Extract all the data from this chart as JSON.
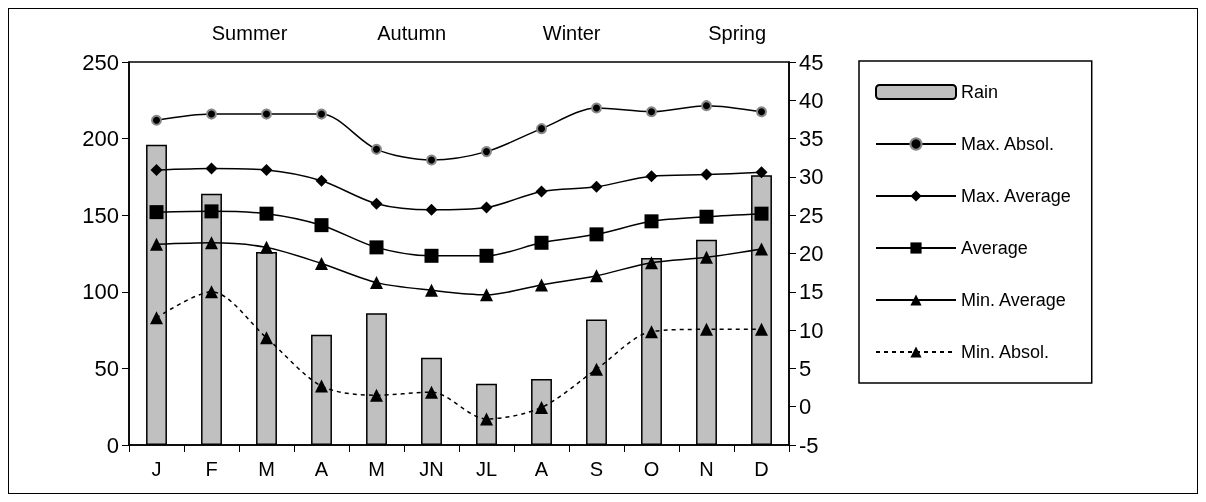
{
  "chart_data": {
    "type": "bar",
    "categories": [
      "J",
      "F",
      "M",
      "A",
      "M",
      "JN",
      "JL",
      "A",
      "S",
      "O",
      "N",
      "D"
    ],
    "annotations": [
      "Summer",
      "Autumn",
      "Winter",
      "Spring"
    ],
    "series": [
      {
        "name": "Rain",
        "color": "#c0c0c0",
        "values": [
          196,
          164,
          126,
          72,
          86,
          57,
          40,
          43,
          82,
          122,
          134,
          176
        ]
      },
      {
        "name": "Max. Absol.",
        "type": "line",
        "axis": "y2",
        "color": "#000000",
        "marker": "circle",
        "line_style": "solid",
        "values": [
          37.4,
          38.2,
          38.2,
          38.2,
          33.6,
          32.2,
          33.3,
          36.3,
          39.0,
          38.5,
          39.3,
          38.5
        ]
      },
      {
        "name": "Max. Average",
        "type": "line",
        "axis": "y2",
        "color": "#000000",
        "marker": "diamond",
        "line_style": "solid",
        "values": [
          30.9,
          31.1,
          30.9,
          29.5,
          26.5,
          25.7,
          26.0,
          28.1,
          28.7,
          30.1,
          30.3,
          30.6
        ]
      },
      {
        "name": "Average",
        "type": "line",
        "axis": "y2",
        "color": "#000000",
        "marker": "square",
        "line_style": "solid",
        "values": [
          25.4,
          25.5,
          25.2,
          23.7,
          20.8,
          19.7,
          19.7,
          21.4,
          22.5,
          24.2,
          24.8,
          25.2
        ]
      },
      {
        "name": "Min. Average",
        "type": "line",
        "axis": "y2",
        "color": "#000000",
        "marker": "triangle",
        "line_style": "solid",
        "values": [
          21.2,
          21.4,
          20.8,
          18.7,
          16.2,
          15.2,
          14.6,
          15.9,
          17.1,
          18.8,
          19.5,
          20.6
        ]
      },
      {
        "name": "Min. Absol.",
        "type": "line",
        "axis": "y2",
        "color": "#000000",
        "marker": "triangle",
        "line_style": "dashed",
        "values": [
          11.6,
          15.0,
          9.0,
          2.7,
          1.5,
          1.9,
          -1.6,
          -0.1,
          4.9,
          9.8,
          10.1,
          10.1
        ]
      }
    ],
    "ylim": [
      0,
      250
    ],
    "yticks": [
      0,
      50,
      100,
      150,
      200,
      250
    ],
    "y2lim": [
      -5,
      45
    ],
    "y2ticks": [
      -5,
      0,
      5,
      10,
      15,
      20,
      25,
      30,
      35,
      40,
      45
    ],
    "grid": false,
    "legend": "right"
  }
}
